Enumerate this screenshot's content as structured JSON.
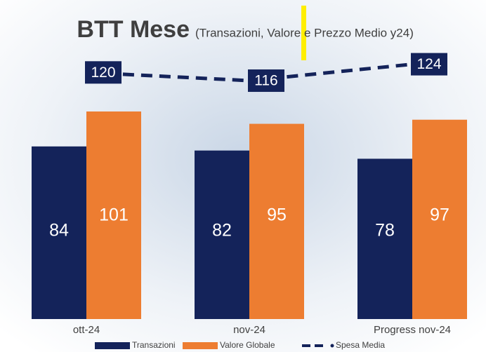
{
  "chart_data": {
    "type": "bar",
    "title": "BTT Mese",
    "subtitle": "(Transazioni, Valore e Prezzo Medio y24)",
    "categories": [
      "ott-24",
      "nov-24",
      "Progress nov-24"
    ],
    "series": [
      {
        "name": "Transazioni",
        "color": "#14235a",
        "values": [
          84,
          82,
          78
        ]
      },
      {
        "name": "Valore Globale",
        "color": "#ed7d31",
        "values": [
          101,
          95,
          97
        ]
      },
      {
        "name": "Spesa Media",
        "type": "line",
        "color": "#14235a",
        "values": [
          120,
          116,
          124
        ]
      }
    ],
    "ylim": [
      0,
      130
    ],
    "grid": false,
    "legend": "bottom"
  }
}
